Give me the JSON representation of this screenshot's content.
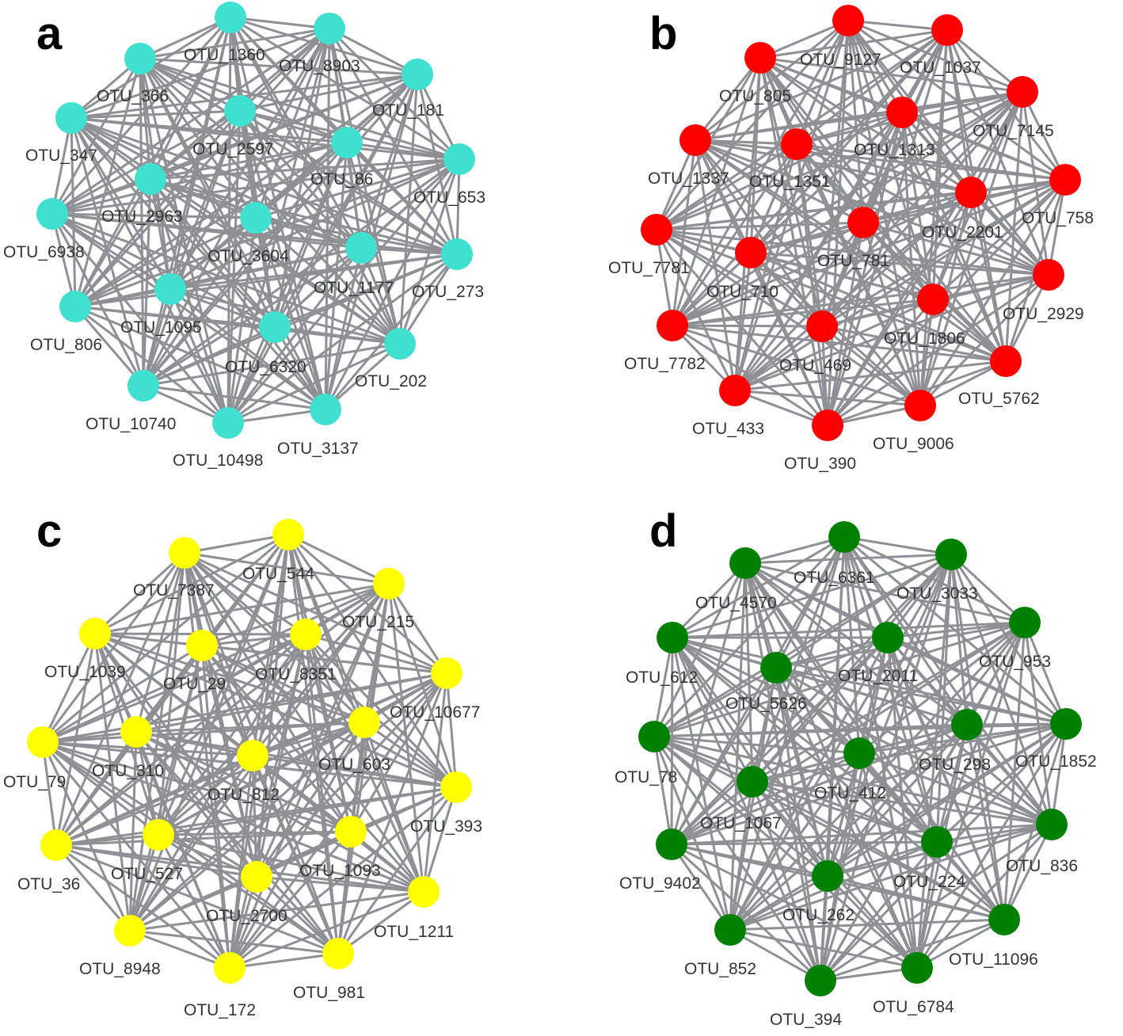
{
  "colors": {
    "edge": "#8f9095",
    "label": "#333333"
  },
  "panels": [
    {
      "letter": "a",
      "node_color": "#40e0d0",
      "nodes": [
        "OTU_1360",
        "OTU_8903",
        "OTU_181",
        "OTU_366",
        "OTU_347",
        "OTU_2597",
        "OTU_86",
        "OTU_653",
        "OTU_2963",
        "OTU_6938",
        "OTU_3604",
        "OTU_1177",
        "OTU_273",
        "OTU_1095",
        "OTU_806",
        "OTU_6320",
        "OTU_202",
        "OTU_10740",
        "OTU_10498",
        "OTU_3137"
      ]
    },
    {
      "letter": "b",
      "node_color": "#ff0000",
      "nodes": [
        "OTU_9127",
        "OTU_1037",
        "OTU_805",
        "OTU_7145",
        "OTU_1313",
        "OTU_1337",
        "OTU_1351",
        "OTU_758",
        "OTU_2201",
        "OTU_7781",
        "OTU_781",
        "OTU_710",
        "OTU_2929",
        "OTU_1806",
        "OTU_7782",
        "OTU_469",
        "OTU_5762",
        "OTU_433",
        "OTU_390",
        "OTU_9006"
      ]
    },
    {
      "letter": "c",
      "node_color": "#ffff00",
      "nodes": [
        "OTU_544",
        "OTU_7387",
        "OTU_215",
        "OTU_1039",
        "OTU_29",
        "OTU_8351",
        "OTU_10677",
        "OTU_79",
        "OTU_310",
        "OTU_603",
        "OTU_812",
        "OTU_393",
        "OTU_36",
        "OTU_527",
        "OTU_1093",
        "OTU_2700",
        "OTU_1211",
        "OTU_8948",
        "OTU_172",
        "OTU_981"
      ]
    },
    {
      "letter": "d",
      "node_color": "#008000",
      "nodes": [
        "OTU_6361",
        "OTU_4570",
        "OTU_3033",
        "OTU_953",
        "OTU_612",
        "OTU_2011",
        "OTU_5626",
        "OTU_1852",
        "OTU_298",
        "OTU_78",
        "OTU_412",
        "OTU_1067",
        "OTU_836",
        "OTU_9402",
        "OTU_224",
        "OTU_262",
        "OTU_11096",
        "OTU_852",
        "OTU_394",
        "OTU_6784"
      ]
    }
  ]
}
